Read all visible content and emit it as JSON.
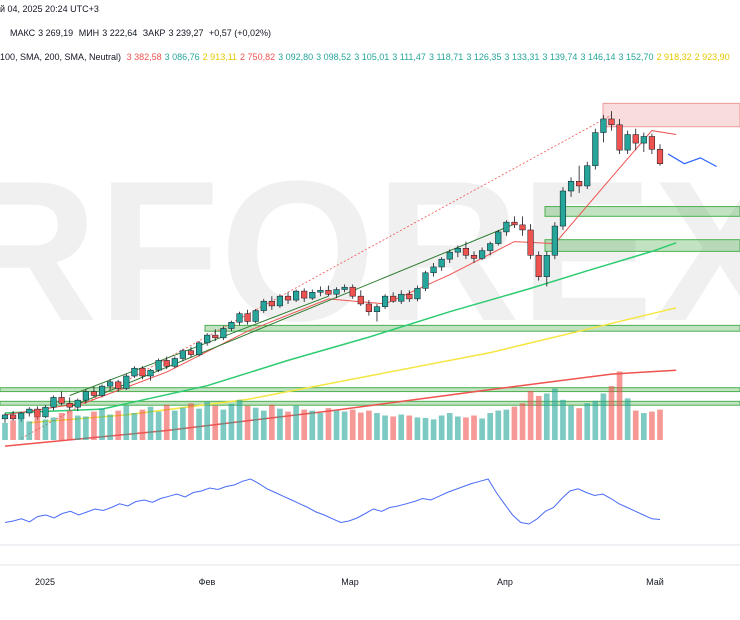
{
  "header": {
    "date_line": "й 04, 2025 20:24 UTC+3",
    "ohlc": {
      "high_label": "МАКС",
      "high": "3 269,19",
      "low_label": "МИН",
      "low": "3 222,64",
      "close_label": "ЗАКР",
      "close": "3 239,27",
      "change": "+0,57 (+0,02%)"
    },
    "indicator": {
      "label": "100, SMA, 200, SMA, Neutral)",
      "values": [
        {
          "text": "3 382,58",
          "color": "#ef5350"
        },
        {
          "text": "3 086,76",
          "color": "#26a69a"
        },
        {
          "text": "2 913,11",
          "color": "#e6c700"
        },
        {
          "text": "2 750,82",
          "color": "#ef5350"
        },
        {
          "text": "3 092,80",
          "color": "#26a69a"
        },
        {
          "text": "3 098,52",
          "color": "#26a69a"
        },
        {
          "text": "3 105,01",
          "color": "#26a69a"
        },
        {
          "text": "3 111,47",
          "color": "#26a69a"
        },
        {
          "text": "3 118,71",
          "color": "#26a69a"
        },
        {
          "text": "3 126,35",
          "color": "#26a69a"
        },
        {
          "text": "3 133,31",
          "color": "#26a69a"
        },
        {
          "text": "3 139,74",
          "color": "#26a69a"
        },
        {
          "text": "3 146,14",
          "color": "#26a69a"
        },
        {
          "text": "3 152,70",
          "color": "#26a69a"
        },
        {
          "text": "2 918,32",
          "color": "#e6c700"
        },
        {
          "text": "2 923,90",
          "color": "#e6c700"
        }
      ]
    }
  },
  "watermark": "RFOREX",
  "colors": {
    "up": "#26a69a",
    "down": "#ef5350",
    "wick": "#131722",
    "sma_short": "#ef5350",
    "sma_green": "#2ecc71",
    "sma_yellow": "#f5e642",
    "sma_long": "#ef5350",
    "channel": "#2e7d32",
    "oscillator": "#4a6cf7",
    "zone_green": "#4caf50",
    "zone_red": "#ef9a9a",
    "forecast": "#2962ff"
  },
  "chart_data": {
    "type": "candlestick",
    "xaxis_labels": [
      "2025",
      "Фев",
      "Мар",
      "Апр",
      "Май"
    ],
    "ylim": [
      2550,
      3500
    ],
    "candles": [
      [
        2630,
        2645,
        2620,
        2640
      ],
      [
        2640,
        2650,
        2625,
        2630
      ],
      [
        2630,
        2648,
        2622,
        2645
      ],
      [
        2645,
        2660,
        2636,
        2655
      ],
      [
        2655,
        2662,
        2628,
        2635
      ],
      [
        2635,
        2665,
        2632,
        2660
      ],
      [
        2660,
        2690,
        2652,
        2685
      ],
      [
        2685,
        2700,
        2665,
        2670
      ],
      [
        2670,
        2685,
        2652,
        2660
      ],
      [
        2660,
        2682,
        2650,
        2678
      ],
      [
        2678,
        2705,
        2670,
        2700
      ],
      [
        2700,
        2712,
        2685,
        2690
      ],
      [
        2690,
        2718,
        2685,
        2714
      ],
      [
        2714,
        2732,
        2705,
        2725
      ],
      [
        2725,
        2730,
        2700,
        2708
      ],
      [
        2708,
        2745,
        2704,
        2740
      ],
      [
        2740,
        2765,
        2735,
        2760
      ],
      [
        2760,
        2765,
        2732,
        2740
      ],
      [
        2740,
        2758,
        2728,
        2755
      ],
      [
        2755,
        2785,
        2750,
        2780
      ],
      [
        2780,
        2790,
        2758,
        2765
      ],
      [
        2765,
        2790,
        2760,
        2785
      ],
      [
        2785,
        2810,
        2778,
        2805
      ],
      [
        2805,
        2815,
        2788,
        2795
      ],
      [
        2795,
        2830,
        2790,
        2825
      ],
      [
        2825,
        2850,
        2818,
        2845
      ],
      [
        2845,
        2860,
        2830,
        2838
      ],
      [
        2838,
        2868,
        2832,
        2862
      ],
      [
        2862,
        2882,
        2855,
        2878
      ],
      [
        2878,
        2905,
        2870,
        2900
      ],
      [
        2900,
        2910,
        2872,
        2880
      ],
      [
        2880,
        2912,
        2876,
        2908
      ],
      [
        2908,
        2938,
        2902,
        2932
      ],
      [
        2932,
        2945,
        2910,
        2920
      ],
      [
        2920,
        2950,
        2915,
        2945
      ],
      [
        2945,
        2955,
        2925,
        2935
      ],
      [
        2935,
        2962,
        2930,
        2958
      ],
      [
        2958,
        2965,
        2930,
        2940
      ],
      [
        2940,
        2962,
        2935,
        2955
      ],
      [
        2955,
        2970,
        2945,
        2960
      ],
      [
        2960,
        2972,
        2945,
        2950
      ],
      [
        2950,
        2968,
        2940,
        2962
      ],
      [
        2962,
        2975,
        2955,
        2968
      ],
      [
        2968,
        2975,
        2938,
        2945
      ],
      [
        2945,
        2960,
        2920,
        2925
      ],
      [
        2925,
        2935,
        2895,
        2905
      ],
      [
        2905,
        2925,
        2880,
        2918
      ],
      [
        2918,
        2950,
        2912,
        2945
      ],
      [
        2945,
        2955,
        2928,
        2932
      ],
      [
        2932,
        2960,
        2925,
        2950
      ],
      [
        2950,
        2960,
        2930,
        2938
      ],
      [
        2938,
        2972,
        2932,
        2965
      ],
      [
        2965,
        3010,
        2958,
        3005
      ],
      [
        3005,
        3030,
        2995,
        3020
      ],
      [
        3020,
        3045,
        3010,
        3040
      ],
      [
        3040,
        3065,
        3030,
        3058
      ],
      [
        3058,
        3075,
        3045,
        3068
      ],
      [
        3068,
        3085,
        3040,
        3050
      ],
      [
        3050,
        3060,
        3030,
        3042
      ],
      [
        3042,
        3070,
        3038,
        3062
      ],
      [
        3062,
        3085,
        3050,
        3080
      ],
      [
        3080,
        3115,
        3075,
        3110
      ],
      [
        3110,
        3140,
        3100,
        3135
      ],
      [
        3135,
        3150,
        3120,
        3128
      ],
      [
        3128,
        3150,
        3100,
        3115
      ],
      [
        3115,
        3130,
        3040,
        3050
      ],
      [
        3050,
        3060,
        2985,
        2995
      ],
      [
        2995,
        3060,
        2970,
        3050
      ],
      [
        3050,
        3135,
        3040,
        3125
      ],
      [
        3125,
        3225,
        3115,
        3215
      ],
      [
        3215,
        3250,
        3200,
        3240
      ],
      [
        3240,
        3280,
        3210,
        3228
      ],
      [
        3228,
        3290,
        3220,
        3280
      ],
      [
        3280,
        3375,
        3270,
        3365
      ],
      [
        3365,
        3410,
        3340,
        3400
      ],
      [
        3400,
        3420,
        3370,
        3385
      ],
      [
        3385,
        3400,
        3310,
        3320
      ],
      [
        3320,
        3370,
        3310,
        3360
      ],
      [
        3360,
        3375,
        3320,
        3338
      ],
      [
        3338,
        3365,
        3315,
        3355
      ],
      [
        3355,
        3362,
        3310,
        3322
      ],
      [
        3322,
        3335,
        3280,
        3285
      ]
    ],
    "sma_short": [
      [
        0,
        2640
      ],
      [
        10,
        2672
      ],
      [
        20,
        2750
      ],
      [
        30,
        2855
      ],
      [
        40,
        2938
      ],
      [
        47,
        2925
      ],
      [
        55,
        3000
      ],
      [
        63,
        3085
      ],
      [
        68,
        3080
      ],
      [
        75,
        3250
      ],
      [
        80,
        3370
      ],
      [
        83,
        3360
      ]
    ],
    "sma_green": [
      [
        0,
        2645
      ],
      [
        12,
        2655
      ],
      [
        25,
        2715
      ],
      [
        35,
        2780
      ],
      [
        45,
        2840
      ],
      [
        55,
        2905
      ],
      [
        65,
        2965
      ],
      [
        72,
        3010
      ],
      [
        80,
        3060
      ],
      [
        83,
        3082
      ]
    ],
    "sma_yellow": [
      [
        3,
        2620
      ],
      [
        15,
        2640
      ],
      [
        30,
        2680
      ],
      [
        45,
        2740
      ],
      [
        60,
        2800
      ],
      [
        72,
        2860
      ],
      [
        80,
        2900
      ],
      [
        83,
        2915
      ]
    ],
    "sma_long": [
      [
        0,
        2560
      ],
      [
        20,
        2600
      ],
      [
        40,
        2650
      ],
      [
        60,
        2705
      ],
      [
        75,
        2745
      ],
      [
        83,
        2755
      ]
    ],
    "volume": [
      0.35,
      0.4,
      0.45,
      0.38,
      0.5,
      0.42,
      0.46,
      0.55,
      0.6,
      0.5,
      0.48,
      0.58,
      0.65,
      0.52,
      0.6,
      0.7,
      0.55,
      0.62,
      0.68,
      0.58,
      0.72,
      0.6,
      0.66,
      0.75,
      0.64,
      0.78,
      0.7,
      0.62,
      0.74,
      0.82,
      0.7,
      0.66,
      0.6,
      0.72,
      0.64,
      0.58,
      0.7,
      0.62,
      0.6,
      0.55,
      0.65,
      0.6,
      0.58,
      0.62,
      0.56,
      0.6,
      0.55,
      0.5,
      0.48,
      0.52,
      0.5,
      0.46,
      0.45,
      0.42,
      0.5,
      0.55,
      0.48,
      0.46,
      0.5,
      0.44,
      0.55,
      0.6,
      0.62,
      0.68,
      0.75,
      1.0,
      0.9,
      0.95,
      1.05,
      0.82,
      0.7,
      0.65,
      0.75,
      0.8,
      0.95,
      1.1,
      1.4,
      0.85,
      0.6,
      0.55,
      0.58,
      0.62
    ],
    "oscillator": [
      30,
      32,
      35,
      31,
      38,
      40,
      36,
      42,
      45,
      40,
      44,
      48,
      46,
      50,
      55,
      52,
      58,
      60,
      57,
      62,
      65,
      68,
      64,
      70,
      72,
      76,
      74,
      78,
      80,
      85,
      88,
      82,
      75,
      70,
      65,
      60,
      55,
      50,
      44,
      40,
      35,
      30,
      32,
      36,
      42,
      48,
      45,
      50,
      52,
      55,
      58,
      62,
      60,
      65,
      70,
      74,
      78,
      82,
      85,
      88,
      70,
      55,
      40,
      30,
      28,
      35,
      45,
      50,
      62,
      72,
      75,
      70,
      66,
      68,
      62,
      55,
      50,
      45,
      40,
      35,
      34
    ]
  }
}
